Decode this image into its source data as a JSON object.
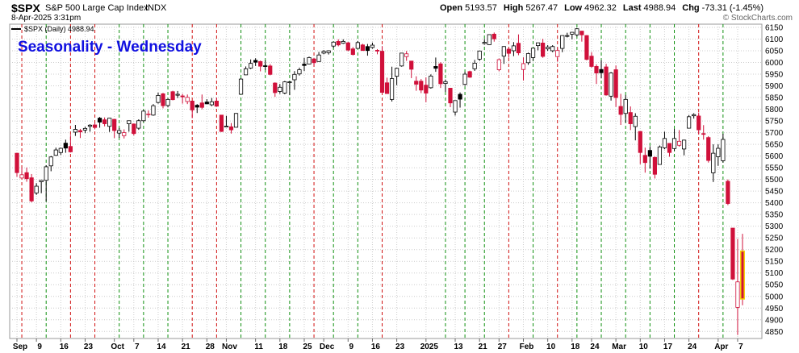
{
  "chart_data": {
    "type": "candlestick",
    "title": "Seasonality - Wednesday",
    "header": {
      "symbol": "$SPX",
      "name": "S&P 500 Large Cap Index",
      "exchange": "INDX",
      "datetime": "8-Apr-2025 3:31pm",
      "copyright": "© StockCharts.com",
      "quote": [
        {
          "label": "Open",
          "value": "5193.57"
        },
        {
          "label": "High",
          "value": "5267.47"
        },
        {
          "label": "Low",
          "value": "4962.32"
        },
        {
          "label": "Last",
          "value": "4988.94"
        },
        {
          "label": "Chg",
          "value": "-73.31 (-1.45%)"
        }
      ]
    },
    "legend": "$SPX (Daily) 4988.94",
    "x": [
      "2024-09-03",
      "2024-09-04",
      "2024-09-05",
      "2024-09-06",
      "2024-09-09",
      "2024-09-10",
      "2024-09-11",
      "2024-09-12",
      "2024-09-13",
      "2024-09-16",
      "2024-09-17",
      "2024-09-18",
      "2024-09-19",
      "2024-09-20",
      "2024-09-23",
      "2024-09-24",
      "2024-09-25",
      "2024-09-26",
      "2024-09-27",
      "2024-09-30",
      "2024-10-01",
      "2024-10-02",
      "2024-10-03",
      "2024-10-04",
      "2024-10-07",
      "2024-10-08",
      "2024-10-09",
      "2024-10-10",
      "2024-10-11",
      "2024-10-14",
      "2024-10-15",
      "2024-10-16",
      "2024-10-17",
      "2024-10-18",
      "2024-10-21",
      "2024-10-22",
      "2024-10-23",
      "2024-10-24",
      "2024-10-25",
      "2024-10-28",
      "2024-10-29",
      "2024-10-30",
      "2024-10-31",
      "2024-11-01",
      "2024-11-04",
      "2024-11-05",
      "2024-11-06",
      "2024-11-07",
      "2024-11-08",
      "2024-11-11",
      "2024-11-12",
      "2024-11-13",
      "2024-11-14",
      "2024-11-15",
      "2024-11-18",
      "2024-11-19",
      "2024-11-20",
      "2024-11-21",
      "2024-11-22",
      "2024-11-25",
      "2024-11-26",
      "2024-11-27",
      "2024-11-29",
      "2024-12-02",
      "2024-12-03",
      "2024-12-04",
      "2024-12-05",
      "2024-12-06",
      "2024-12-09",
      "2024-12-10",
      "2024-12-11",
      "2024-12-12",
      "2024-12-13",
      "2024-12-16",
      "2024-12-17",
      "2024-12-18",
      "2024-12-19",
      "2024-12-20",
      "2024-12-23",
      "2024-12-24",
      "2024-12-26",
      "2024-12-27",
      "2024-12-30",
      "2024-12-31",
      "2025-01-02",
      "2025-01-03",
      "2025-01-06",
      "2025-01-07",
      "2025-01-08",
      "2025-01-10",
      "2025-01-13",
      "2025-01-14",
      "2025-01-15",
      "2025-01-16",
      "2025-01-17",
      "2025-01-21",
      "2025-01-22",
      "2025-01-23",
      "2025-01-24",
      "2025-01-27",
      "2025-01-28",
      "2025-01-29",
      "2025-01-30",
      "2025-01-31",
      "2025-02-03",
      "2025-02-04",
      "2025-02-05",
      "2025-02-06",
      "2025-02-07",
      "2025-02-10",
      "2025-02-11",
      "2025-02-12",
      "2025-02-13",
      "2025-02-14",
      "2025-02-18",
      "2025-02-19",
      "2025-02-20",
      "2025-02-21",
      "2025-02-24",
      "2025-02-25",
      "2025-02-26",
      "2025-02-27",
      "2025-02-28",
      "2025-03-03",
      "2025-03-04",
      "2025-03-05",
      "2025-03-06",
      "2025-03-07",
      "2025-03-10",
      "2025-03-11",
      "2025-03-12",
      "2025-03-13",
      "2025-03-14",
      "2025-03-17",
      "2025-03-18",
      "2025-03-19",
      "2025-03-20",
      "2025-03-21",
      "2025-03-24",
      "2025-03-25",
      "2025-03-26",
      "2025-03-27",
      "2025-03-28",
      "2025-03-31",
      "2025-04-01",
      "2025-04-02",
      "2025-04-03",
      "2025-04-04",
      "2025-04-07",
      "2025-04-08"
    ],
    "open": [
      5612,
      5506,
      5529,
      5507,
      5442,
      5490,
      5496,
      5558,
      5603,
      5615,
      5655,
      5641,
      5702,
      5709,
      5711,
      5727,
      5733,
      5762,
      5755,
      5727,
      5757,
      5698,
      5687,
      5738,
      5737,
      5719,
      5751,
      5778,
      5775,
      5829,
      5866,
      5816,
      5875,
      5860,
      5857,
      5833,
      5835,
      5817,
      5827,
      5831,
      5819,
      5835,
      5775,
      5724,
      5725,
      5723,
      5864,
      5947,
      5976,
      6009,
      6004,
      5986,
      5985,
      5912,
      5876,
      5869,
      5917,
      5926,
      5951,
      5993,
      5993,
      6015,
      6004,
      6040,
      6042,
      6070,
      6090,
      6082,
      6084,
      6058,
      6060,
      6075,
      6068,
      6064,
      6052,
      6048,
      5913,
      5842,
      5941,
      5985,
      6025,
      6006,
      5920,
      5920,
      5903,
      5892,
      5983,
      5994,
      5910,
      5890,
      5788,
      5864,
      5906,
      5961,
      5973,
      6014,
      6081,
      6076,
      6121,
      5969,
      6027,
      6057,
      6050,
      6082,
      5970,
      5999,
      6021,
      6072,
      6083,
      6058,
      6050,
      6025,
      6060,
      6115,
      6121,
      6118,
      6134,
      6115,
      6027,
      5983,
      5970,
      5981,
      5856,
      5969,
      5812,
      5782,
      5786,
      5726,
      5705,
      5603,
      5624,
      5594,
      5564,
      5635,
      5654,
      5632,
      5646,
      5630,
      5719,
      5772,
      5771,
      5696,
      5679,
      5528,
      5597,
      5580,
      5492,
      5292,
      4953,
      5193.57
    ],
    "high": [
      5613,
      5552,
      5551,
      5523,
      5484,
      5497,
      5561,
      5600,
      5636,
      5636,
      5670,
      5690,
      5733,
      5716,
      5725,
      5736,
      5742,
      5767,
      5765,
      5763,
      5757,
      5720,
      5714,
      5752,
      5739,
      5757,
      5797,
      5795,
      5822,
      5871,
      5870,
      5846,
      5879,
      5878,
      5866,
      5863,
      5835,
      5822,
      5863,
      5843,
      5848,
      5850,
      5776,
      5772,
      5741,
      5784,
      5933,
      5983,
      6013,
      6018,
      6008,
      6009,
      5993,
      5915,
      5908,
      5921,
      5920,
      5963,
      5978,
      6020,
      6025,
      6020,
      6045,
      6053,
      6052,
      6089,
      6099,
      6099,
      6088,
      6066,
      6092,
      6080,
      6079,
      6085,
      6057,
      6070,
      5935,
      5982,
      5978,
      6041,
      6049,
      6007,
      5941,
      5929,
      5936,
      5949,
      6021,
      6001,
      5927,
      5891,
      5837,
      5872,
      5960,
      5965,
      6011,
      6051,
      6100,
      6119,
      6128,
      6017,
      6070,
      6062,
      6087,
      6120,
      6022,
      6042,
      6062,
      6084,
      6101,
      6074,
      6074,
      6063,
      6116,
      6127,
      6129,
      6147,
      6135,
      6117,
      6044,
      5992,
      6009,
      5994,
      5959,
      5987,
      5866,
      5861,
      5812,
      5783,
      5706,
      5636,
      5642,
      5598,
      5645,
      5704,
      5654,
      5716,
      5711,
      5670,
      5775,
      5783,
      5786,
      5732,
      5685,
      5650,
      5650,
      5695,
      5500,
      5292,
      5246,
      5267.47
    ],
    "low": [
      5511,
      5504,
      5490,
      5402,
      5434,
      5441,
      5406,
      5535,
      5601,
      5605,
      5614,
      5615,
      5686,
      5677,
      5698,
      5704,
      5714,
      5721,
      5727,
      5703,
      5677,
      5678,
      5675,
      5704,
      5688,
      5712,
      5746,
      5764,
      5772,
      5824,
      5804,
      5808,
      5838,
      5848,
      5824,
      5822,
      5762,
      5784,
      5800,
      5824,
      5813,
      5810,
      5703,
      5723,
      5696,
      5722,
      5864,
      5946,
      5972,
      5985,
      5962,
      5968,
      5945,
      5853,
      5866,
      5864,
      5860,
      5883,
      5944,
      5963,
      5992,
      5984,
      6003,
      6035,
      6034,
      6062,
      6069,
      6079,
      6048,
      6030,
      6060,
      6050,
      6029,
      6059,
      6035,
      5867,
      5866,
      5833,
      5903,
      5982,
      6007,
      5933,
      5879,
      5869,
      5830,
      5888,
      5960,
      5891,
      5874,
      5809,
      5773,
      5807,
      5901,
      5934,
      5964,
      6007,
      6076,
      6075,
      6089,
      5962,
      5994,
      6020,
      6027,
      6031,
      5923,
      5990,
      6007,
      6052,
      6020,
      6050,
      6044,
      6003,
      6044,
      6107,
      6099,
      6111,
      6089,
      6009,
      5978,
      5908,
      5932,
      5858,
      5837,
      5810,
      5733,
      5743,
      5711,
      5667,
      5565,
      5529,
      5546,
      5504,
      5564,
      5629,
      5597,
      5622,
      5640,
      5603,
      5719,
      5760,
      5695,
      5670,
      5572,
      5489,
      5558,
      5572,
      5390,
      5070,
      4835,
      4962.32
    ],
    "close": [
      5529,
      5520,
      5503,
      5408,
      5471,
      5496,
      5554,
      5596,
      5626,
      5633,
      5634,
      5618,
      5714,
      5703,
      5718,
      5732,
      5722,
      5745,
      5738,
      5762,
      5709,
      5709,
      5700,
      5751,
      5696,
      5751,
      5792,
      5780,
      5815,
      5859,
      5815,
      5842,
      5841,
      5864,
      5853,
      5851,
      5797,
      5809,
      5808,
      5823,
      5832,
      5813,
      5705,
      5728,
      5712,
      5782,
      5929,
      5973,
      5996,
      6001,
      5984,
      5985,
      5949,
      5871,
      5894,
      5917,
      5917,
      5949,
      5969,
      5987,
      6021,
      5999,
      6032,
      6047,
      6050,
      6087,
      6075,
      6090,
      6053,
      6034,
      6085,
      6051,
      6051,
      6074,
      6050,
      5872,
      5867,
      5931,
      5975,
      6040,
      6037,
      5971,
      5907,
      5882,
      5869,
      5942,
      5975,
      5909,
      5918,
      5827,
      5837,
      5843,
      5950,
      5937,
      5997,
      6049,
      6086,
      6119,
      6101,
      6012,
      6068,
      6039,
      6071,
      6041,
      5995,
      6038,
      6061,
      6084,
      6026,
      6066,
      6068,
      6051,
      6115,
      6115,
      6129,
      6144,
      6118,
      6013,
      5983,
      5955,
      5956,
      5861,
      5955,
      5850,
      5778,
      5842,
      5738,
      5770,
      5615,
      5572,
      5599,
      5522,
      5639,
      5675,
      5615,
      5675,
      5663,
      5668,
      5768,
      5777,
      5712,
      5693,
      5581,
      5612,
      5633,
      5671,
      5397,
      5074,
      5062,
      4988.94
    ],
    "up_color": "#000000",
    "down_color": "#d0103a",
    "highlight_color": "#f5d000",
    "wednesday_up_color": "#109010",
    "wednesday_down_color": "#d01010",
    "title_color": "#1010e0",
    "ylim": [
      4820,
      6205
    ],
    "yticks": [
      4850,
      4900,
      4950,
      5000,
      5050,
      5100,
      5150,
      5200,
      5250,
      5300,
      5350,
      5400,
      5450,
      5500,
      5550,
      5600,
      5650,
      5700,
      5750,
      5800,
      5850,
      5900,
      5950,
      6000,
      6050,
      6100,
      6150
    ],
    "xticks": [
      {
        "value": "2024-09-03",
        "label": "Sep"
      },
      {
        "value": "2024-09-09",
        "label": "9"
      },
      {
        "value": "2024-09-16",
        "label": "16"
      },
      {
        "value": "2024-09-23",
        "label": "23"
      },
      {
        "value": "2024-10-01",
        "label": "Oct"
      },
      {
        "value": "2024-10-07",
        "label": "7"
      },
      {
        "value": "2024-10-14",
        "label": "14"
      },
      {
        "value": "2024-10-21",
        "label": "21"
      },
      {
        "value": "2024-10-28",
        "label": "28"
      },
      {
        "value": "2024-11-01",
        "label": "Nov"
      },
      {
        "value": "2024-11-11",
        "label": "11"
      },
      {
        "value": "2024-11-18",
        "label": "18"
      },
      {
        "value": "2024-11-25",
        "label": "25"
      },
      {
        "value": "2024-12-02",
        "label": "Dec"
      },
      {
        "value": "2024-12-09",
        "label": "9"
      },
      {
        "value": "2024-12-16",
        "label": "16"
      },
      {
        "value": "2024-12-23",
        "label": "23"
      },
      {
        "value": "2025-01-02",
        "label": "2025"
      },
      {
        "value": "2025-01-13",
        "label": "13"
      },
      {
        "value": "2025-01-21",
        "label": "21"
      },
      {
        "value": "2025-01-27",
        "label": "27"
      },
      {
        "value": "2025-02-03",
        "label": "Feb"
      },
      {
        "value": "2025-02-10",
        "label": "10"
      },
      {
        "value": "2025-02-18",
        "label": "18"
      },
      {
        "value": "2025-02-24",
        "label": "24"
      },
      {
        "value": "2025-03-03",
        "label": "Mar"
      },
      {
        "value": "2025-03-10",
        "label": "10"
      },
      {
        "value": "2025-03-17",
        "label": "17"
      },
      {
        "value": "2025-03-24",
        "label": "24"
      },
      {
        "value": "2025-04-01",
        "label": "Apr"
      },
      {
        "value": "2025-04-07",
        "label": "7"
      }
    ],
    "grid": true
  }
}
